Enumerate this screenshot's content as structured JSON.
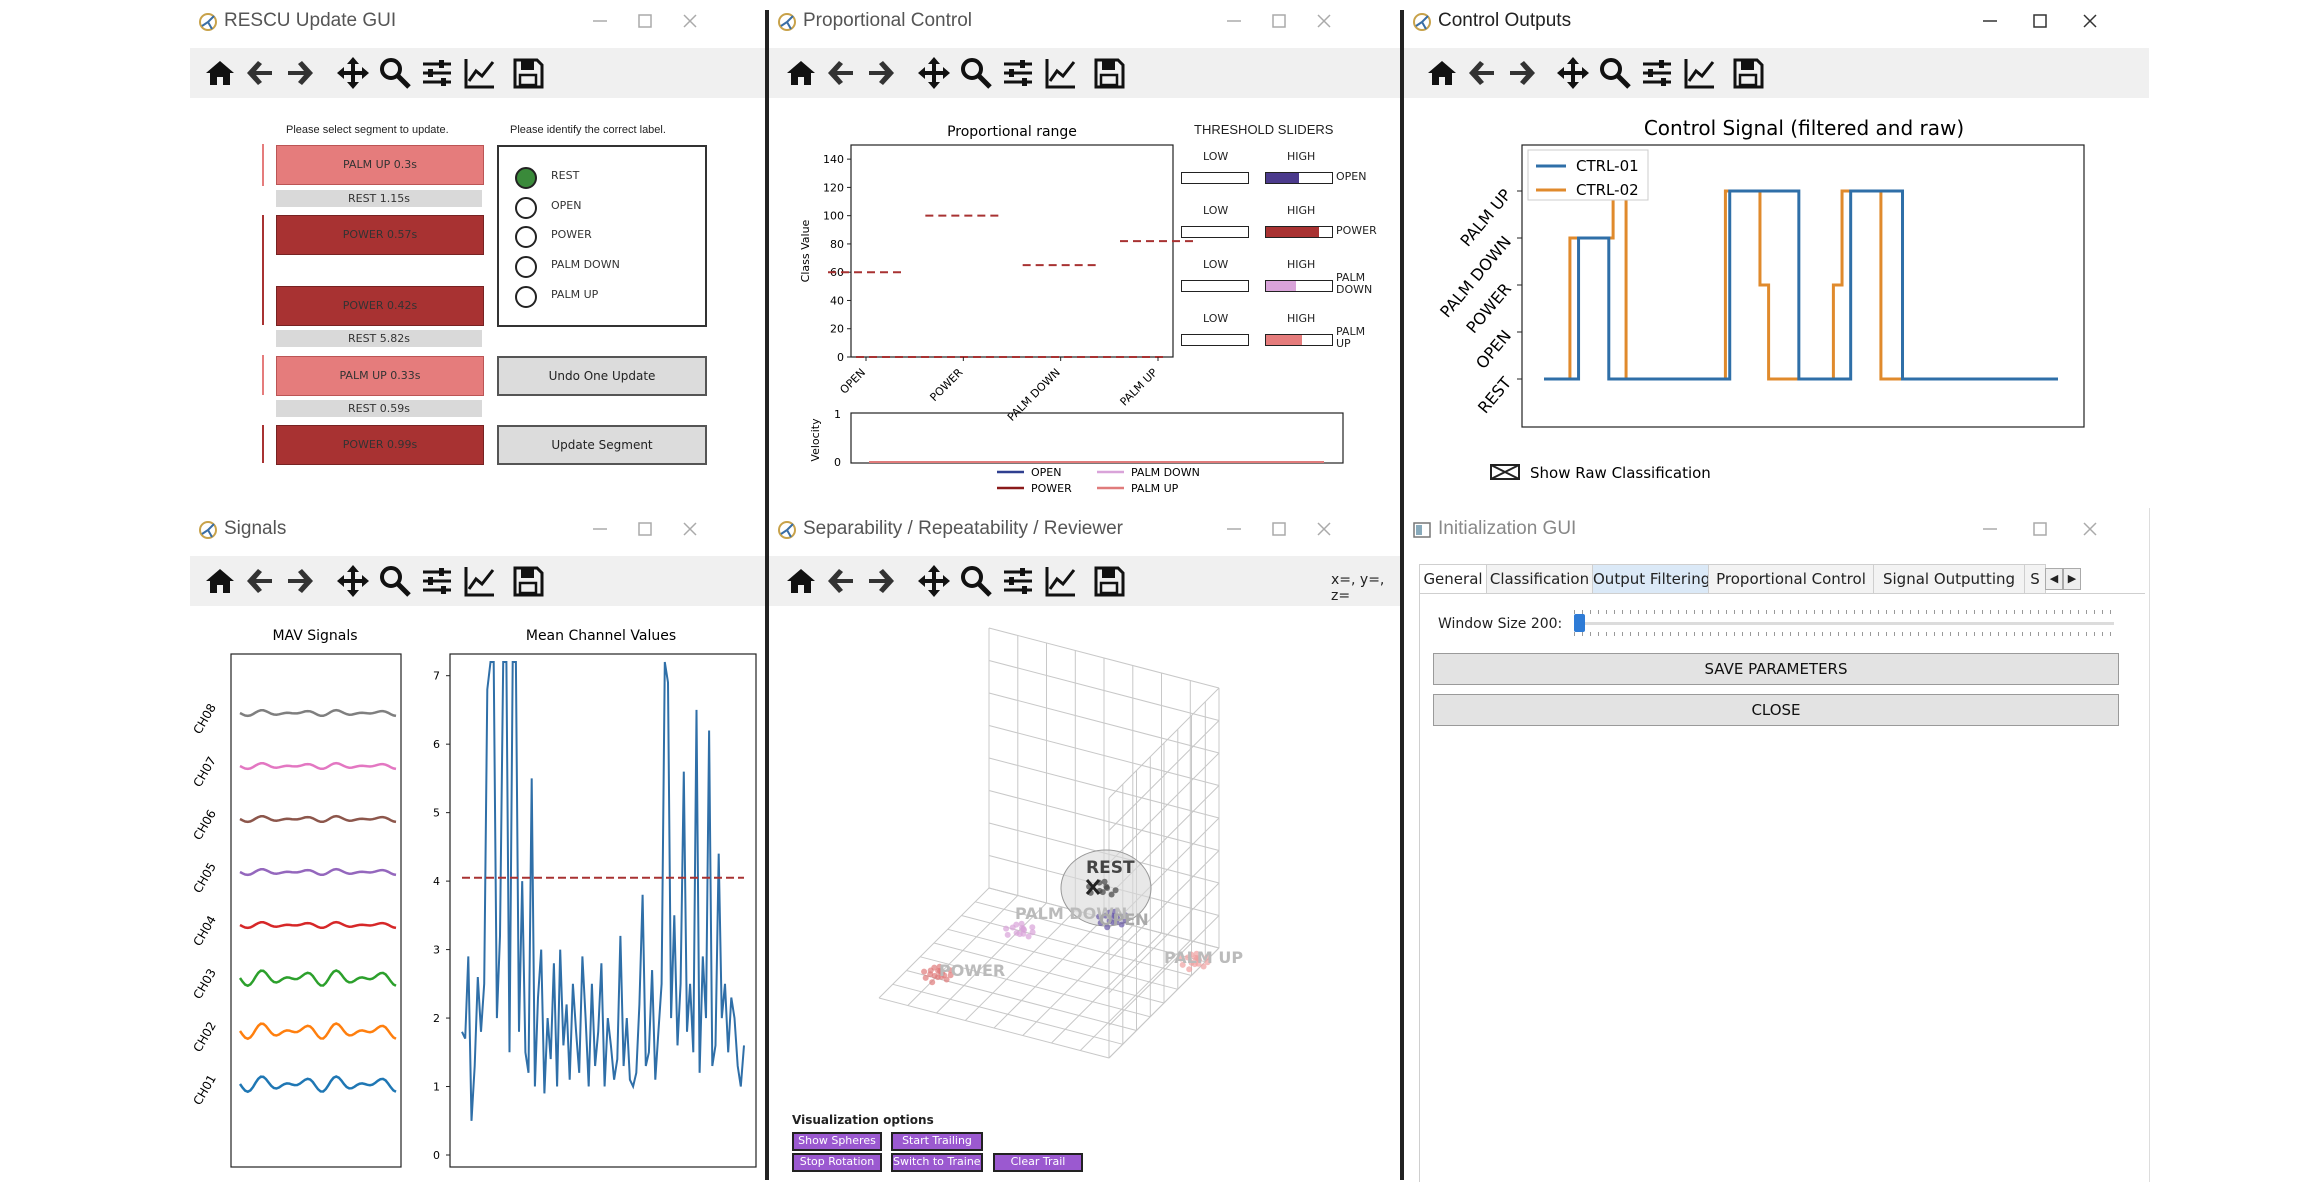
{
  "windows": {
    "rescu": {
      "title": "RESCU Update GUI",
      "select_prompt": "Please select segment to update.",
      "label_prompt": "Please identify the correct label.",
      "segments": [
        {
          "label": "PALM UP 0.3s",
          "color": "#e57c7c"
        },
        {
          "label": "REST 1.15s",
          "color": "#d9d9d9"
        },
        {
          "label": "POWER 0.57s",
          "color": "#a83232"
        },
        {
          "label": "POWER 0.42s",
          "color": "#a83232"
        },
        {
          "label": "REST 5.82s",
          "color": "#d9d9d9"
        },
        {
          "label": "PALM UP 0.33s",
          "color": "#e57c7c"
        },
        {
          "label": "REST 0.59s",
          "color": "#d9d9d9"
        },
        {
          "label": "POWER 0.99s",
          "color": "#a83232"
        }
      ],
      "radio_options": [
        "REST",
        "OPEN",
        "POWER",
        "PALM DOWN",
        "PALM UP"
      ],
      "selected_option": "REST",
      "undo_label": "Undo One Update",
      "update_label": "Update Segment"
    },
    "proportional": {
      "title": "Proportional Control",
      "plot_title": "Proportional range",
      "ylabel": "Class Value",
      "velocity_label": "Velocity",
      "sliders_title": "THRESHOLD SLIDERS",
      "low_label": "LOW",
      "high_label": "HIGH",
      "sliders": [
        {
          "name": "OPEN",
          "line2": "",
          "high_fraction": 0.5,
          "color": "#4b3a8c"
        },
        {
          "name": "POWER",
          "line2": "",
          "high_fraction": 0.8,
          "color": "#a83232"
        },
        {
          "name": "PALM",
          "line2": "DOWN",
          "high_fraction": 0.45,
          "color": "#d9a3d9"
        },
        {
          "name": "PALM",
          "line2": "UP",
          "high_fraction": 0.55,
          "color": "#e57c7c"
        }
      ],
      "legend": [
        {
          "name": "OPEN",
          "color": "#2f3f8f"
        },
        {
          "name": "PALM DOWN",
          "color": "#d9a3d9"
        },
        {
          "name": "POWER",
          "color": "#8b1a1a"
        },
        {
          "name": "PALM UP",
          "color": "#e07b7b"
        }
      ],
      "velocity_ticks": [
        "1",
        "0"
      ]
    },
    "control_outputs": {
      "title": "Control Outputs",
      "show_raw_label": "Show Raw Classification"
    },
    "signals": {
      "title": "Signals",
      "mav_title": "MAV Signals",
      "mean_title": "Mean Channel Values",
      "channels": [
        "CH08",
        "CH07",
        "CH06",
        "CH05",
        "CH04",
        "CH03",
        "CH02",
        "CH01"
      ]
    },
    "separability": {
      "title": "Separability / Repeatability / Reviewer",
      "coords": "x=, y=, z=",
      "class_labels": [
        "REST",
        "PALM DOWN",
        "OPEN",
        "POWER",
        "PALM UP"
      ],
      "options_title": "Visualization options",
      "buttons": [
        "Show Spheres",
        "Start Trailing",
        "Stop Rotation",
        "Switch to Trainer",
        "Clear Trail"
      ]
    },
    "init": {
      "title": "Initialization GUI",
      "tabs": [
        "General",
        "Classification",
        "Output Filtering",
        "Proportional Control",
        "Signal Outputting",
        "S"
      ],
      "window_size_label": "Window Size  200:",
      "window_size_value": 200,
      "save_label": "SAVE PARAMETERS",
      "close_label": "CLOSE"
    }
  },
  "chart_data": [
    {
      "type": "line",
      "title": "Proportional range",
      "ylabel": "Class Value",
      "categories": [
        "OPEN",
        "POWER",
        "PALM DOWN",
        "PALM UP"
      ],
      "yticks": [
        0,
        20,
        40,
        60,
        80,
        100,
        120,
        140
      ],
      "ylim": [
        0,
        150
      ],
      "series": [
        {
          "name": "OPEN",
          "values": [
            60,
            0,
            0,
            0
          ]
        },
        {
          "name": "POWER",
          "values": [
            0,
            100,
            0,
            0
          ]
        },
        {
          "name": "PALM DOWN",
          "values": [
            0,
            0,
            65,
            0
          ]
        },
        {
          "name": "PALM UP",
          "values": [
            0,
            0,
            0,
            82
          ]
        }
      ]
    },
    {
      "type": "line",
      "title": "Control Signal (filtered and raw)",
      "yticklabels": [
        "REST",
        "OPEN",
        "POWER",
        "PALM DOWN",
        "PALM UP"
      ],
      "legend_position": "top-left",
      "series": [
        {
          "name": "CTRL-01",
          "color": "#2f6fa8",
          "values": [
            0,
            0,
            0,
            0,
            0,
            0,
            0,
            0,
            3,
            3,
            3,
            3,
            3,
            3,
            3,
            0,
            0,
            0,
            0,
            0,
            0,
            0,
            0,
            0,
            0,
            0,
            0,
            0,
            0,
            0,
            0,
            0,
            0,
            0,
            0,
            0,
            0,
            0,
            0,
            0,
            0,
            0,
            0,
            4,
            4,
            4,
            4,
            4,
            4,
            4,
            4,
            4,
            4,
            4,
            4,
            4,
            4,
            4,
            4,
            0,
            0,
            0,
            0,
            0,
            0,
            0,
            0,
            0,
            0,
            0,
            0,
            4,
            4,
            4,
            4,
            4,
            4,
            4,
            4,
            4,
            4,
            4,
            4,
            0,
            0,
            0,
            0,
            0,
            0,
            0,
            0,
            0,
            0,
            0,
            0,
            0,
            0,
            0,
            0,
            0,
            0,
            0,
            0,
            0,
            0,
            0,
            0,
            0,
            0,
            0,
            0,
            0,
            0,
            0,
            0,
            0,
            0,
            0,
            0,
            0
          ]
        },
        {
          "name": "CTRL-02",
          "color": "#e08a2c",
          "values": [
            0,
            0,
            0,
            0,
            0,
            0,
            3,
            3,
            3,
            3,
            3,
            3,
            3,
            3,
            3,
            3,
            4,
            4,
            4,
            0,
            0,
            0,
            0,
            0,
            0,
            0,
            0,
            0,
            0,
            0,
            0,
            0,
            0,
            0,
            0,
            0,
            0,
            0,
            0,
            0,
            0,
            0,
            4,
            4,
            4,
            4,
            4,
            4,
            4,
            4,
            2,
            2,
            0,
            0,
            0,
            0,
            0,
            0,
            0,
            0,
            0,
            0,
            0,
            0,
            0,
            0,
            0,
            2,
            2,
            4,
            4,
            4,
            4,
            4,
            4,
            4,
            4,
            4,
            0,
            0,
            0,
            0,
            0,
            0,
            0,
            0,
            0,
            0,
            0,
            0,
            0,
            0,
            0,
            0,
            0,
            0,
            0,
            0,
            0,
            0,
            0,
            0,
            0,
            0,
            0,
            0,
            0,
            0,
            0,
            0,
            0,
            0,
            0,
            0,
            0,
            0,
            0,
            0,
            0,
            0
          ]
        }
      ]
    },
    {
      "type": "line",
      "title": "MAV Signals",
      "categories": [
        "CH08",
        "CH07",
        "CH06",
        "CH05",
        "CH04",
        "CH03",
        "CH02",
        "CH01"
      ],
      "colors": [
        "#7f7f7f",
        "#e377c2",
        "#8c564b",
        "#9467bd",
        "#d62728",
        "#2ca02c",
        "#ff7f0e",
        "#1f77b4"
      ]
    },
    {
      "type": "line",
      "title": "Mean Channel Values",
      "yticks": [
        0,
        1,
        2,
        3,
        4,
        5,
        6,
        7
      ],
      "ylim": [
        0,
        7.2
      ],
      "threshold": 4.05,
      "series": [
        {
          "name": "",
          "values": [
            1.8,
            1.7,
            2.9,
            0.5,
            1.3,
            2.6,
            1.8,
            2.5,
            6.8,
            7.2,
            7.2,
            2.0,
            3.2,
            7.2,
            7.2,
            1.5,
            7.2,
            7.2,
            1.8,
            4.0,
            1.5,
            1.2,
            5.5,
            1.0,
            2.3,
            3.0,
            0.9,
            2.0,
            1.4,
            2.8,
            1.0,
            3.0,
            1.6,
            2.2,
            1.1,
            2.5,
            1.8,
            1.2,
            2.9,
            2.0,
            1.0,
            2.5,
            1.3,
            1.8,
            2.8,
            1.0,
            2.0,
            1.6,
            1.1,
            1.4,
            3.2,
            1.3,
            2.0,
            1.1,
            1.0,
            1.2,
            2.2,
            3.8,
            1.3,
            1.5,
            2.7,
            1.1,
            1.8,
            2.5,
            7.2,
            6.9,
            2.0,
            3.5,
            1.6,
            2.5,
            5.6,
            1.8,
            2.5,
            1.5,
            6.5,
            1.2,
            2.9,
            2.0,
            6.2,
            1.3,
            1.6,
            4.4,
            2.0,
            2.5,
            1.5,
            2.3,
            2.0,
            1.3,
            1.0,
            1.6
          ]
        }
      ]
    }
  ]
}
